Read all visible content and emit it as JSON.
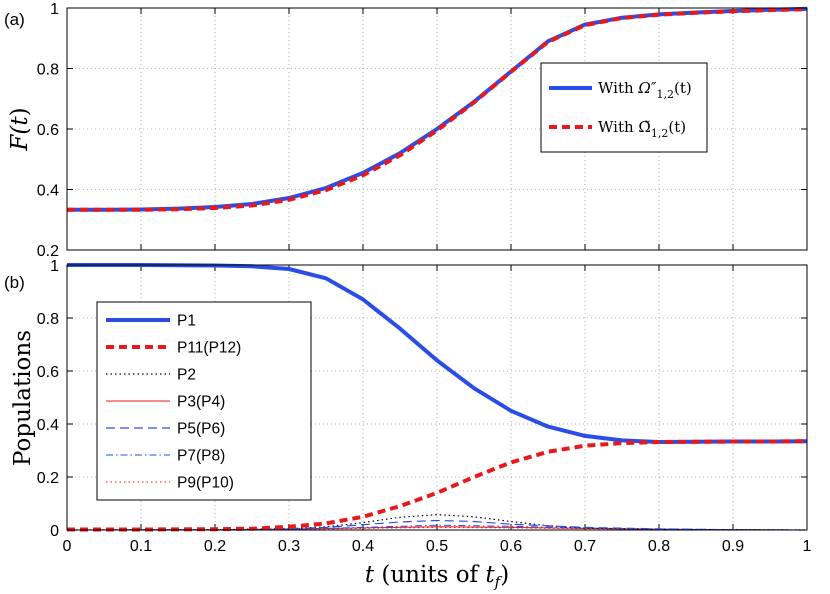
{
  "chart_data": [
    {
      "panel_label": "(a)",
      "type": "line",
      "xlabel": "",
      "ylabel": "F(t)",
      "ylabel_parts": [
        "F(",
        "t",
        ")"
      ],
      "xlim": [
        0,
        1
      ],
      "ylim": [
        0.2,
        1.0
      ],
      "xticks": [
        0,
        0.1,
        0.2,
        0.3,
        0.4,
        0.5,
        0.6,
        0.7,
        0.8,
        0.9,
        1
      ],
      "xtick_labels": [],
      "yticks": [
        0.2,
        0.4,
        0.6,
        0.8,
        1
      ],
      "ytick_labels": [
        "0.2",
        "0.4",
        "0.6",
        "0.8",
        "1"
      ],
      "grid": true,
      "legend_position": "right",
      "series": [
        {
          "name": "With Ω″1,2(t)",
          "legend_parts": [
            "With ",
            "Ω″",
            "1,2",
            "(t)"
          ],
          "color": "#2a4de8",
          "style": "solid",
          "width": 4,
          "x": [
            0,
            0.05,
            0.1,
            0.15,
            0.2,
            0.25,
            0.3,
            0.35,
            0.4,
            0.45,
            0.5,
            0.55,
            0.6,
            0.65,
            0.7,
            0.75,
            0.8,
            0.85,
            0.9,
            0.95,
            1
          ],
          "y": [
            0.333,
            0.333,
            0.334,
            0.337,
            0.342,
            0.352,
            0.372,
            0.405,
            0.455,
            0.52,
            0.6,
            0.69,
            0.79,
            0.89,
            0.945,
            0.968,
            0.979,
            0.985,
            0.99,
            0.994,
            0.997
          ]
        },
        {
          "name": "With Ω̃1,2(t)",
          "legend_parts": [
            "With ",
            "Ω̃",
            "1,2",
            "(t)"
          ],
          "color": "#e8191c",
          "style": "dashed",
          "width": 4,
          "x": [
            0,
            0.05,
            0.1,
            0.15,
            0.2,
            0.25,
            0.3,
            0.35,
            0.4,
            0.45,
            0.5,
            0.55,
            0.6,
            0.65,
            0.7,
            0.75,
            0.8,
            0.85,
            0.9,
            0.95,
            1
          ],
          "y": [
            0.333,
            0.333,
            0.333,
            0.335,
            0.339,
            0.347,
            0.366,
            0.398,
            0.447,
            0.513,
            0.595,
            0.688,
            0.789,
            0.888,
            0.943,
            0.967,
            0.978,
            0.984,
            0.989,
            0.993,
            0.996
          ]
        }
      ]
    },
    {
      "panel_label": "(b)",
      "type": "line",
      "xlabel": "t (units of t_f)",
      "xlabel_parts": [
        "t",
        " (units of ",
        "t",
        "f",
        ")"
      ],
      "ylabel": "Populations",
      "xlim": [
        0,
        1
      ],
      "ylim": [
        0,
        1
      ],
      "xticks": [
        0,
        0.1,
        0.2,
        0.3,
        0.4,
        0.5,
        0.6,
        0.7,
        0.8,
        0.9,
        1
      ],
      "xtick_labels": [
        "0",
        "0.1",
        "0.2",
        "0.3",
        "0.4",
        "0.5",
        "0.6",
        "0.7",
        "0.8",
        "0.9",
        "1"
      ],
      "yticks": [
        0,
        0.2,
        0.4,
        0.6,
        0.8,
        1
      ],
      "ytick_labels": [
        "0",
        "0.2",
        "0.4",
        "0.6",
        "0.8",
        "1"
      ],
      "grid": true,
      "legend_position": "left",
      "series": [
        {
          "name": "P1",
          "color": "#2a4de8",
          "style": "solid",
          "width": 4,
          "x": [
            0,
            0.1,
            0.2,
            0.25,
            0.3,
            0.35,
            0.4,
            0.45,
            0.5,
            0.55,
            0.6,
            0.65,
            0.7,
            0.75,
            0.8,
            0.85,
            0.9,
            0.95,
            1
          ],
          "y": [
            1,
            1,
            0.998,
            0.995,
            0.985,
            0.95,
            0.87,
            0.76,
            0.64,
            0.535,
            0.45,
            0.39,
            0.355,
            0.338,
            0.332,
            0.333,
            0.334,
            0.334,
            0.335
          ]
        },
        {
          "name": "P11(P12)",
          "color": "#e8191c",
          "style": "dashed",
          "width": 4,
          "x": [
            0,
            0.1,
            0.2,
            0.25,
            0.3,
            0.35,
            0.4,
            0.45,
            0.5,
            0.55,
            0.6,
            0.65,
            0.7,
            0.75,
            0.8,
            0.85,
            0.9,
            0.95,
            1
          ],
          "y": [
            0.002,
            0.002,
            0.003,
            0.005,
            0.012,
            0.025,
            0.05,
            0.09,
            0.14,
            0.2,
            0.255,
            0.295,
            0.318,
            0.328,
            0.332,
            0.333,
            0.334,
            0.334,
            0.335
          ]
        },
        {
          "name": "P2",
          "color": "#000000",
          "style": "dotted",
          "width": 1.2,
          "x": [
            0,
            0.2,
            0.3,
            0.35,
            0.4,
            0.45,
            0.5,
            0.55,
            0.6,
            0.65,
            0.7,
            0.8,
            0.9,
            1
          ],
          "y": [
            0,
            0.001,
            0.005,
            0.012,
            0.028,
            0.048,
            0.058,
            0.05,
            0.032,
            0.016,
            0.007,
            0.003,
            0.001,
            0
          ]
        },
        {
          "name": "P3(P4)",
          "color": "#e8191c",
          "style": "solid",
          "width": 1,
          "x": [
            0,
            0.2,
            0.3,
            0.4,
            0.5,
            0.6,
            0.7,
            0.8,
            0.9,
            1
          ],
          "y": [
            0,
            0.001,
            0.003,
            0.008,
            0.012,
            0.01,
            0.006,
            0.003,
            0.001,
            0
          ]
        },
        {
          "name": "P5(P6)",
          "color": "#2a4de8",
          "style": "dashed",
          "width": 1.2,
          "x": [
            0,
            0.2,
            0.3,
            0.35,
            0.4,
            0.45,
            0.5,
            0.55,
            0.6,
            0.7,
            0.8,
            0.9,
            1
          ],
          "y": [
            0,
            0.001,
            0.004,
            0.01,
            0.02,
            0.03,
            0.036,
            0.032,
            0.022,
            0.01,
            0.004,
            0.001,
            0
          ]
        },
        {
          "name": "P7(P8)",
          "color": "#2a4de8",
          "style": "dashdot",
          "width": 1,
          "x": [
            0,
            0.2,
            0.3,
            0.4,
            0.5,
            0.6,
            0.7,
            0.8,
            0.9,
            1
          ],
          "y": [
            0,
            0.001,
            0.003,
            0.01,
            0.018,
            0.014,
            0.008,
            0.003,
            0.001,
            0
          ]
        },
        {
          "name": "P9(P10)",
          "color": "#e8191c",
          "style": "dotted",
          "width": 1,
          "x": [
            0,
            0.2,
            0.3,
            0.4,
            0.5,
            0.6,
            0.7,
            0.8,
            0.9,
            1
          ],
          "y": [
            0,
            0.001,
            0.002,
            0.006,
            0.01,
            0.008,
            0.005,
            0.002,
            0.001,
            0
          ]
        }
      ]
    }
  ]
}
